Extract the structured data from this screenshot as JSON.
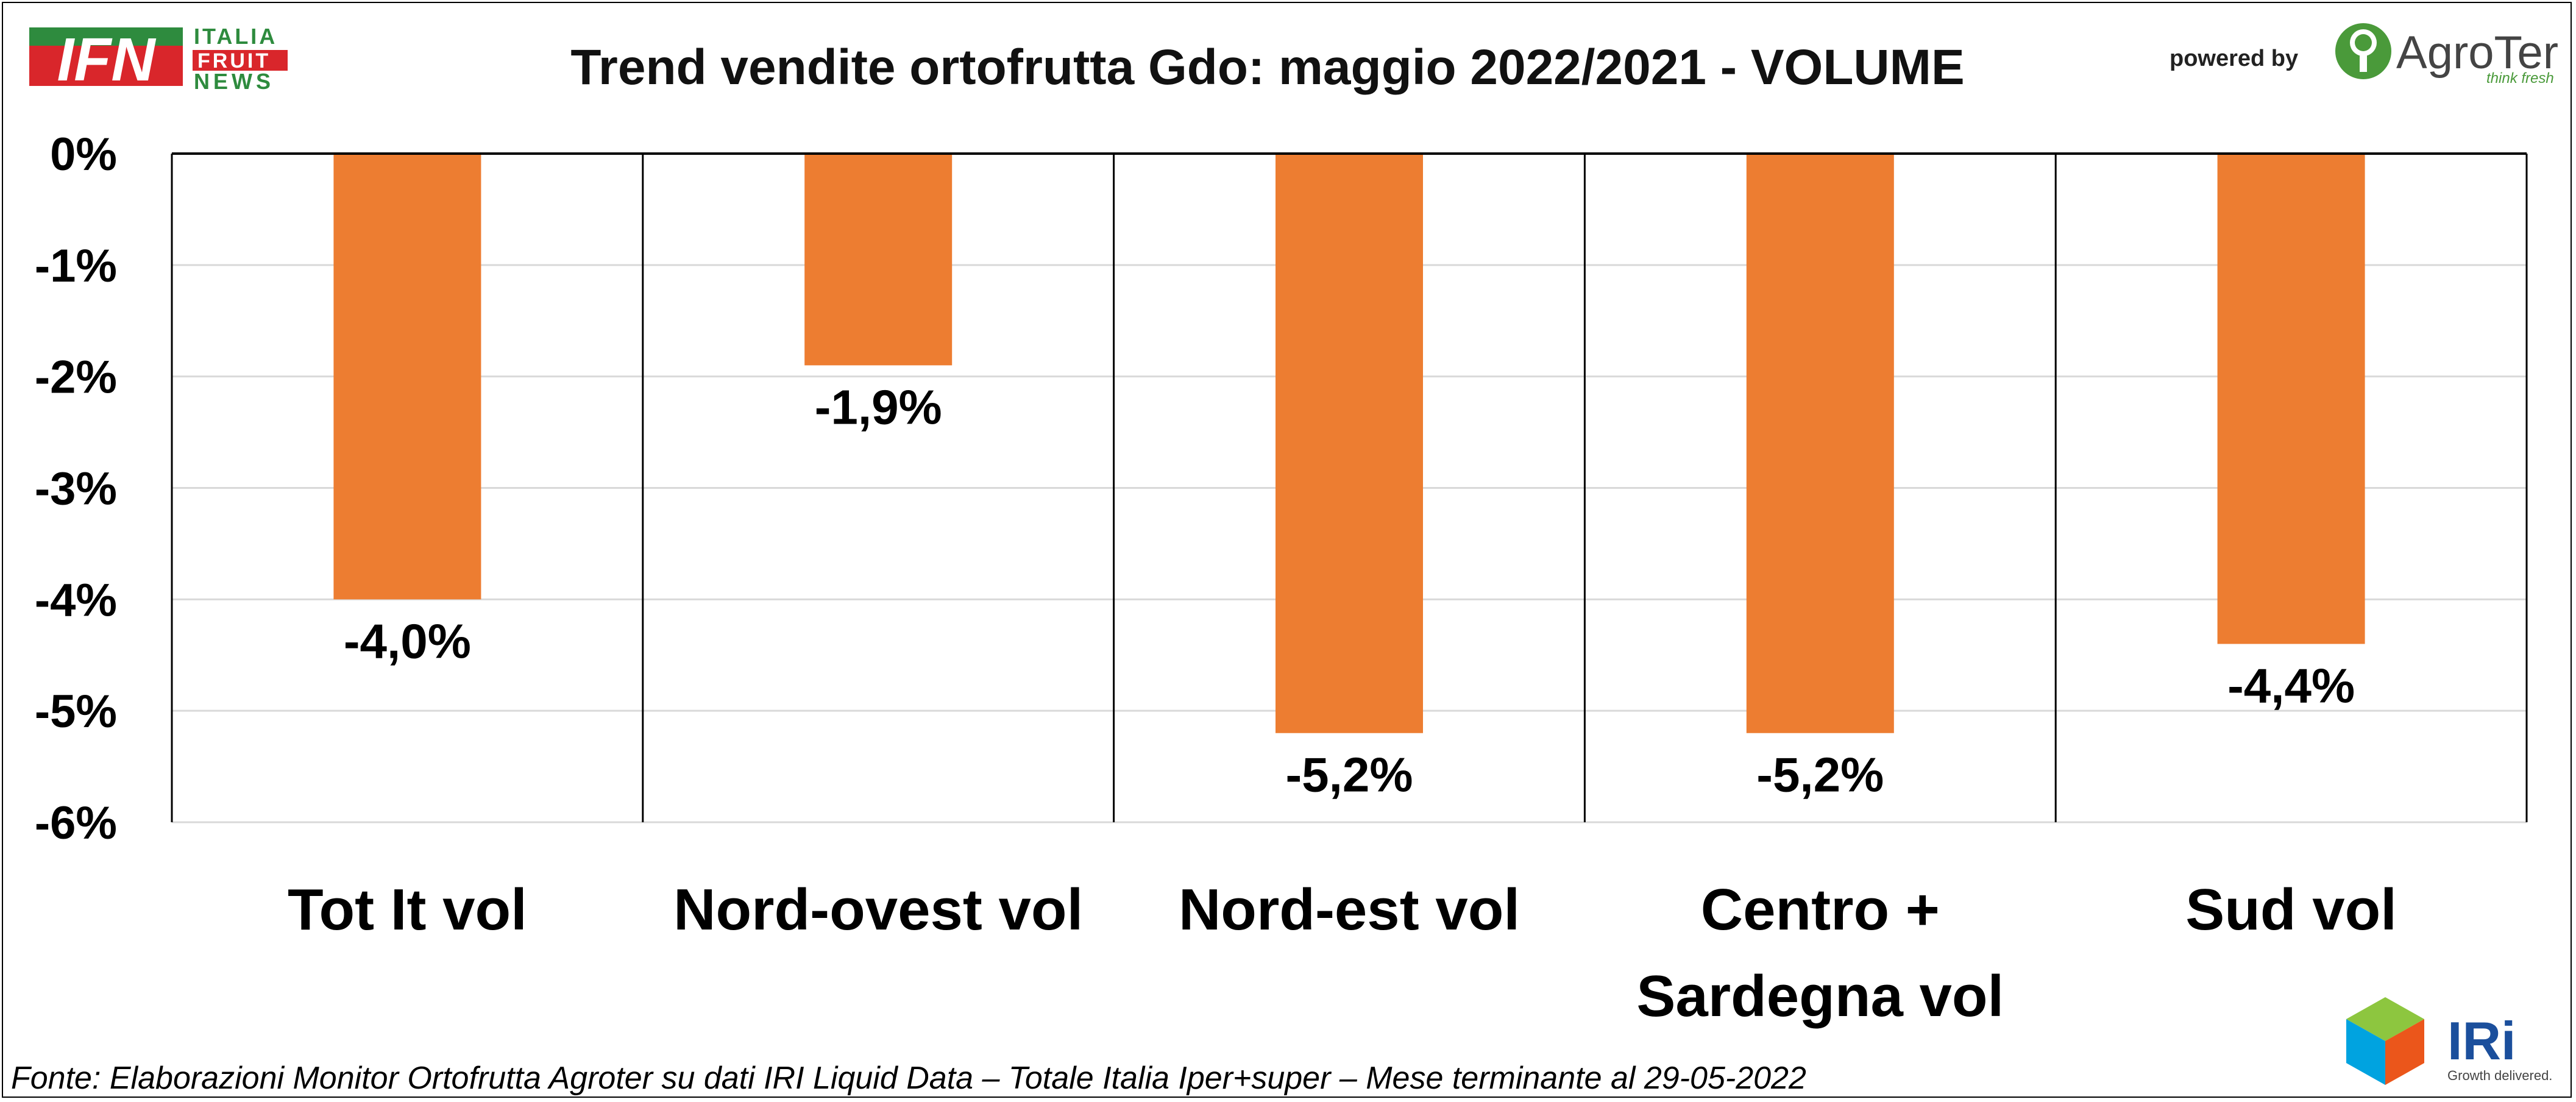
{
  "header": {
    "ifn_logo": {
      "mark": "IFN",
      "line1": "ITALIA",
      "line2": "FRUIT",
      "line3": "NEWS"
    },
    "powered_by": "powered by",
    "agroter_logo": {
      "name": "AgroTer",
      "tagline": "think fresh"
    }
  },
  "footer": {
    "source": "Fonte: Elaborazioni Monitor Ortofrutta Agroter su dati IRI Liquid Data – Totale Italia Iper+super – Mese terminante al 29-05-2022",
    "iri_logo": {
      "name": "IRi",
      "tagline": "Growth delivered."
    }
  },
  "colors": {
    "bar": "#ED7D31",
    "axis": "#000000",
    "grid": "#D9D9D9"
  },
  "chart_data": {
    "type": "bar",
    "title": "Trend vendite ortofrutta Gdo: maggio 2022/2021 - VOLUME",
    "xlabel": "",
    "ylabel": "",
    "categories": [
      [
        "Tot It  vol"
      ],
      [
        "Nord-ovest vol"
      ],
      [
        "Nord-est vol"
      ],
      [
        "Centro +",
        "Sardegna vol"
      ],
      [
        "Sud vol"
      ]
    ],
    "values": [
      -4.0,
      -1.9,
      -5.2,
      -5.2,
      -4.4
    ],
    "data_labels": [
      "-4,0%",
      "-1,9%",
      "-5,2%",
      "-5,2%",
      "-4,4%"
    ],
    "ylim": [
      -6,
      0
    ],
    "yticks": [
      0,
      -1,
      -2,
      -3,
      -4,
      -5,
      -6
    ],
    "ytick_labels": [
      "0%",
      "-1%",
      "-2%",
      "-3%",
      "-4%",
      "-5%",
      "-6%"
    ],
    "grid": true,
    "legend": "none"
  }
}
